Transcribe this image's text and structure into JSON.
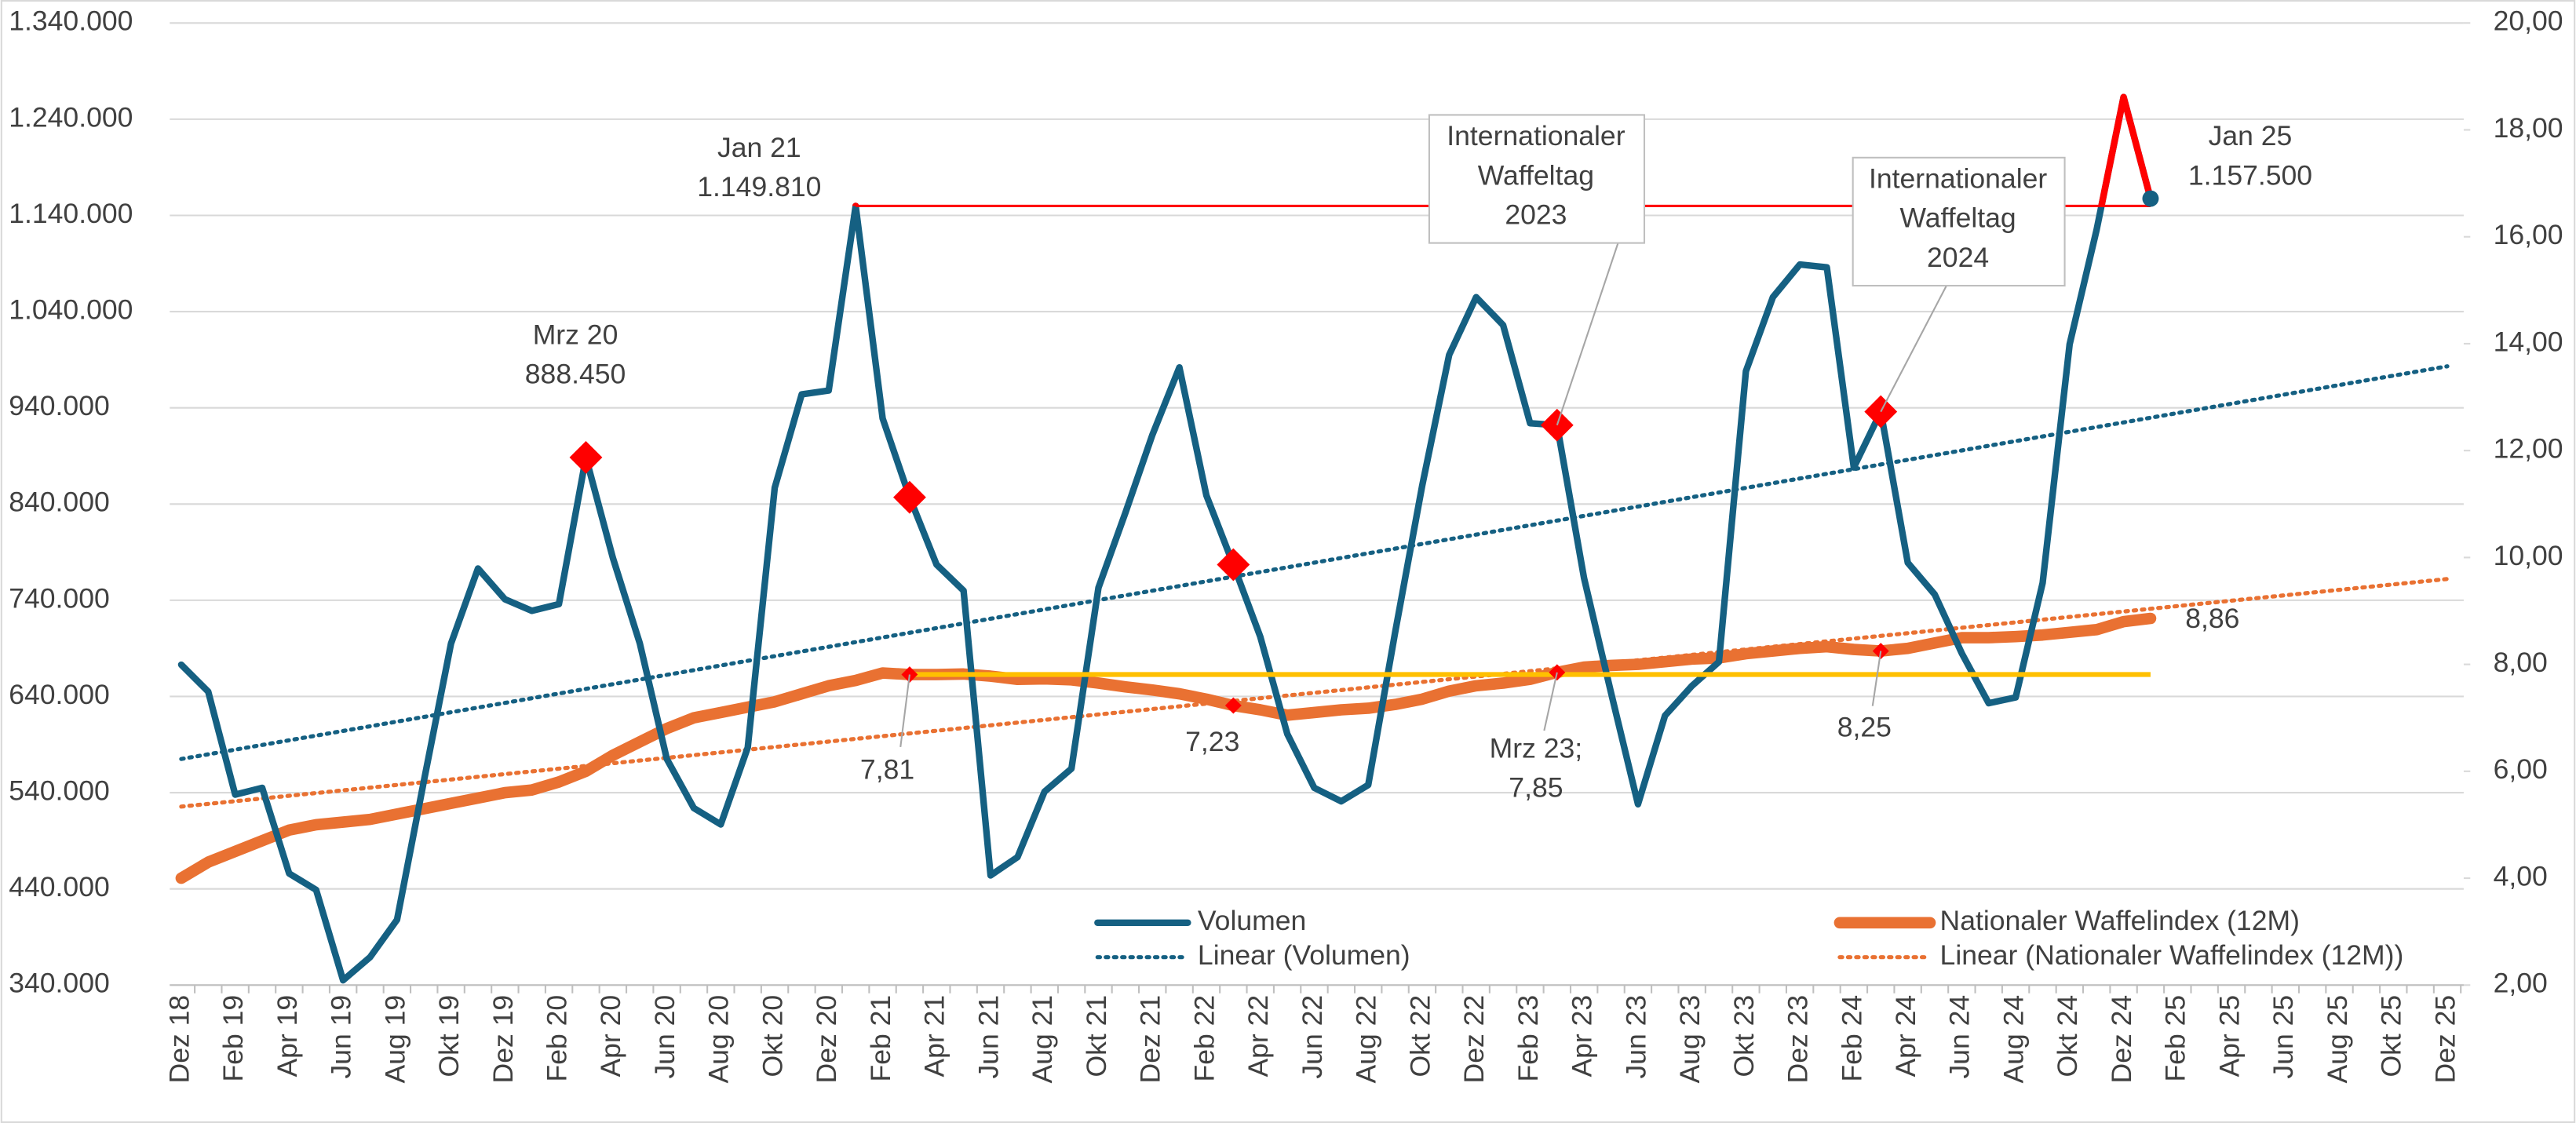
{
  "chart_data": {
    "type": "line",
    "categories": [
      "Dez 18",
      null,
      "Feb 19",
      null,
      "Apr 19",
      null,
      "Jun 19",
      null,
      "Aug 19",
      null,
      "Okt 19",
      null,
      "Dez 19",
      null,
      "Feb 20",
      null,
      "Apr 20",
      null,
      "Jun 20",
      null,
      "Aug 20",
      null,
      "Okt 20",
      null,
      "Dez 20",
      null,
      "Feb 21",
      null,
      "Apr 21",
      null,
      "Jun 21",
      null,
      "Aug 21",
      null,
      "Okt 21",
      null,
      "Dez 21",
      null,
      "Feb 22",
      null,
      "Apr 22",
      null,
      "Jun 22",
      null,
      "Aug 22",
      null,
      "Okt 22",
      null,
      "Dez 22",
      null,
      "Feb 23",
      null,
      "Apr 23",
      null,
      "Jun 23",
      null,
      "Aug 23",
      null,
      "Okt 23",
      null,
      "Dez 23",
      null,
      "Feb 24",
      null,
      "Apr 24",
      null,
      "Jun 24",
      null,
      "Aug 24",
      null,
      "Okt 24",
      null,
      "Dez 24",
      null,
      "Feb 25",
      null,
      "Apr 25",
      null,
      "Jun 25",
      null,
      "Aug 25",
      null,
      "Okt 25",
      null,
      "Dez 25"
    ],
    "series": [
      {
        "name": "Volumen",
        "color": "#156082",
        "axis": "y",
        "values": [
          673000,
          645000,
          538000,
          545000,
          456000,
          439000,
          345000,
          369000,
          408000,
          553000,
          695000,
          773000,
          741000,
          729000,
          736000,
          888450,
          784000,
          695000,
          575000,
          524000,
          507000,
          587000,
          857000,
          954000,
          958000,
          1149810,
          929000,
          847000,
          777000,
          750000,
          454000,
          473000,
          541000,
          565000,
          753000,
          831000,
          912000,
          982000,
          849000,
          777000,
          702000,
          601000,
          545000,
          531000,
          548000,
          707000,
          859000,
          995000,
          1055000,
          1026000,
          924000,
          922000,
          763000,
          644000,
          528000,
          620000,
          651000,
          676000,
          978000,
          1055000,
          1089000,
          1086000,
          878000,
          936000,
          779000,
          746000,
          685000,
          633000,
          639000,
          758000,
          1006000,
          1125000,
          1263000,
          1157500,
          null,
          null,
          null,
          null,
          null,
          null,
          null,
          null,
          null,
          null,
          null
        ],
        "marker_indices": [
          15,
          27,
          39,
          51,
          63
        ],
        "marker_color": "#ff0000",
        "end_marker": true
      },
      {
        "name": "Nationaler Waffelindex (12M)",
        "color": "#e97132",
        "axis": "y2",
        "values": [
          4.0,
          4.3,
          4.5,
          4.7,
          4.9,
          5.0,
          5.05,
          5.1,
          5.2,
          5.3,
          5.4,
          5.5,
          5.6,
          5.65,
          5.8,
          6.0,
          6.3,
          6.55,
          6.8,
          7.0,
          7.1,
          7.2,
          7.3,
          7.45,
          7.6,
          7.7,
          7.84,
          7.81,
          7.81,
          7.82,
          7.78,
          7.72,
          7.73,
          7.71,
          7.65,
          7.58,
          7.52,
          7.45,
          7.35,
          7.23,
          7.15,
          7.05,
          7.1,
          7.15,
          7.18,
          7.25,
          7.35,
          7.5,
          7.6,
          7.65,
          7.72,
          7.85,
          7.95,
          7.98,
          8.0,
          8.05,
          8.1,
          8.12,
          8.2,
          8.25,
          8.3,
          8.33,
          8.28,
          8.25,
          8.3,
          8.4,
          8.5,
          8.5,
          8.52,
          8.55,
          8.6,
          8.65,
          8.8,
          8.86,
          null,
          null,
          null,
          null,
          null,
          null,
          null,
          null,
          null,
          null,
          null
        ],
        "marker_indices": [
          27,
          39,
          51,
          63
        ],
        "marker_color": "#ff0000"
      },
      {
        "name": "Linear (Volumen)",
        "color": "#156082",
        "trendline_of": 0,
        "style": "dotted"
      },
      {
        "name": "Linear (Nationaler Waffelindex (12M))",
        "color": "#e97132",
        "trendline_of": 1,
        "style": "dotted"
      }
    ],
    "reference_lines": [
      {
        "series": 0,
        "from": 25,
        "to": 73,
        "color": "#ff0000",
        "highlight_above": "#ff0000"
      },
      {
        "series": 1,
        "from": 27,
        "to": 73,
        "color": "#ffc000"
      }
    ],
    "annotations": [
      {
        "series": 0,
        "index": 15,
        "text": [
          "Mrz 20",
          "888.450"
        ]
      },
      {
        "series": 0,
        "index": 25,
        "text": [
          "Jan 21",
          "1.149.810"
        ]
      },
      {
        "series": 0,
        "index": 73,
        "text": [
          "Jan 25",
          "1.157.500"
        ]
      },
      {
        "series": 0,
        "index": 51,
        "text": [
          "Internationaler",
          "Waffeltag",
          "2023"
        ],
        "callout": true
      },
      {
        "series": 0,
        "index": 63,
        "text": [
          "Internationaler",
          "Waffeltag",
          "2024"
        ],
        "callout": true
      },
      {
        "series": 1,
        "index": 27,
        "text": [
          "7,81"
        ]
      },
      {
        "series": 1,
        "index": 39,
        "text": [
          "7,23"
        ]
      },
      {
        "series": 1,
        "index": 51,
        "text": [
          "Mrz 23;",
          "7,85"
        ]
      },
      {
        "series": 1,
        "index": 63,
        "text": [
          "8,25"
        ]
      },
      {
        "series": 1,
        "index": 73,
        "text": [
          "8,86"
        ]
      }
    ],
    "ylim": [
      340000,
      1340000
    ],
    "yticks": [
      {
        "value": 340000,
        "label": "340.000"
      },
      {
        "value": 440000,
        "label": "440.000"
      },
      {
        "value": 540000,
        "label": "540.000"
      },
      {
        "value": 640000,
        "label": "640.000"
      },
      {
        "value": 740000,
        "label": "740.000"
      },
      {
        "value": 840000,
        "label": "840.000"
      },
      {
        "value": 940000,
        "label": "940.000"
      },
      {
        "value": 1040000,
        "label": "1.040.000"
      },
      {
        "value": 1140000,
        "label": "1.140.000"
      },
      {
        "value": 1240000,
        "label": "1.240.000"
      },
      {
        "value": 1340000,
        "label": "1.340.000"
      }
    ],
    "y2lim": [
      2,
      20
    ],
    "y2ticks": [
      {
        "value": 2,
        "label": "2,00"
      },
      {
        "value": 4,
        "label": "4,00"
      },
      {
        "value": 6,
        "label": "6,00"
      },
      {
        "value": 8,
        "label": "8,00"
      },
      {
        "value": 10,
        "label": "10,00"
      },
      {
        "value": 12,
        "label": "12,00"
      },
      {
        "value": 14,
        "label": "14,00"
      },
      {
        "value": 16,
        "label": "16,00"
      },
      {
        "value": 18,
        "label": "18,00"
      },
      {
        "value": 20,
        "label": "20,00"
      }
    ],
    "grid": true,
    "legend": "bottom"
  }
}
